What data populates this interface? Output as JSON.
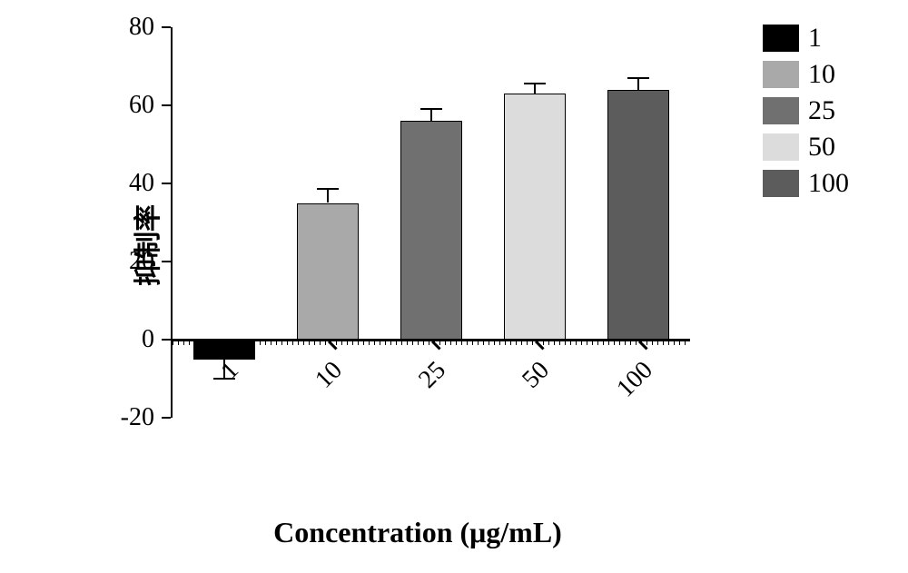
{
  "chart": {
    "type": "bar",
    "ylabel": "抑制率",
    "xlabel": "Concentration (μg/mL)",
    "ylim": [
      -20,
      80
    ],
    "ytick_step": 20,
    "yticks": [
      -20,
      0,
      20,
      40,
      60,
      80
    ],
    "categories": [
      "1",
      "10",
      "25",
      "50",
      "100"
    ],
    "values": [
      -5,
      35,
      56,
      63,
      64
    ],
    "errors": [
      5,
      3.5,
      3,
      2.5,
      3
    ],
    "bar_colors": [
      "#000000",
      "#a9a9a9",
      "#707070",
      "#dcdcdc",
      "#5c5c5c"
    ],
    "bar_width": 0.6,
    "background_color": "#ffffff",
    "axis_color": "#000000",
    "ylabel_fontsize": 30,
    "xlabel_fontsize": 32,
    "tick_fontsize": 28,
    "legend_fontsize": 30,
    "xtick_rotation": -45,
    "legend": {
      "items": [
        "1",
        "10",
        "25",
        "50",
        "100"
      ],
      "colors": [
        "#000000",
        "#a9a9a9",
        "#707070",
        "#dcdcdc",
        "#5c5c5c"
      ],
      "position": "top-right"
    }
  }
}
